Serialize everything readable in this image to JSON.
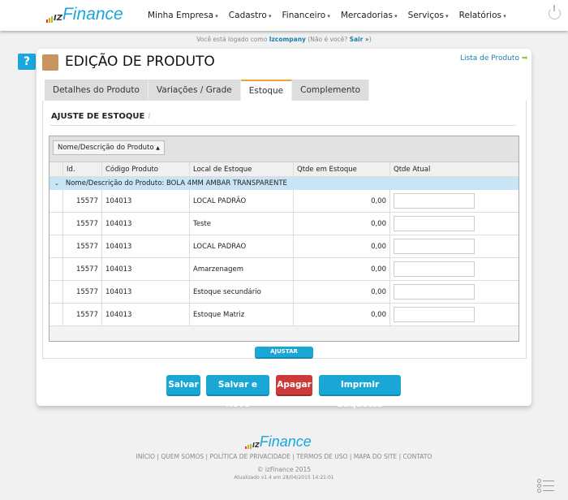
{
  "brand": {
    "logo_iz": "IZ",
    "logo_finance": "Finance",
    "accent": "#1ba7dc"
  },
  "nav": {
    "items": [
      "Minha Empresa",
      "Cadastro",
      "Financeiro",
      "Mercadorias",
      "Serviços",
      "Relatórios"
    ]
  },
  "login": {
    "prefix": "Você está logado como",
    "user": "Izcompany",
    "middle": "(Não é você?",
    "logout": "Sair »",
    "suffix": ")"
  },
  "page": {
    "title": "EDIÇÃO DE PRODUTO",
    "list_link": "Lista de Produto",
    "help": "?"
  },
  "tabs": [
    {
      "label": "Detalhes do Produto"
    },
    {
      "label": "Variações / Grade"
    },
    {
      "label": "Estoque",
      "active": true
    },
    {
      "label": "Complemento"
    }
  ],
  "section": {
    "title": "AJUSTE DE ESTOQUE",
    "info": "i"
  },
  "grid": {
    "group_button": "Nome/Descrição do Produto",
    "columns": [
      "Id.",
      "Código Produto",
      "Local de Estoque",
      "Qtde em Estoque",
      "Qtde Atual"
    ],
    "group_label": "Nome/Descrição do Produto: BOLA 4MM AMBAR TRANSPARENTE",
    "rows": [
      {
        "id": "15577",
        "code": "104013",
        "local": "LOCAL PADRÃO",
        "qty": "0,00",
        "current": ""
      },
      {
        "id": "15577",
        "code": "104013",
        "local": "Teste",
        "qty": "0,00",
        "current": ""
      },
      {
        "id": "15577",
        "code": "104013",
        "local": "LOCAL PADRAO",
        "qty": "0,00",
        "current": ""
      },
      {
        "id": "15577",
        "code": "104013",
        "local": "Amarzenagem",
        "qty": "0,00",
        "current": ""
      },
      {
        "id": "15577",
        "code": "104013",
        "local": "Estoque secundário",
        "qty": "0,00",
        "current": ""
      },
      {
        "id": "15577",
        "code": "104013",
        "local": "Estoque Matriz",
        "qty": "0,00",
        "current": ""
      }
    ]
  },
  "actions": {
    "adjust": "AJUSTAR ESTOQUE",
    "save": "Salvar",
    "save_new": "Salvar e Novo",
    "delete": "Apagar",
    "print": "Imprmir Etiquetas"
  },
  "footer": {
    "links": [
      "INÍCIO",
      "QUEM SOMOS",
      "POLÍTICA DE PRIVACIDADE",
      "TERMOS DE USO",
      "MAPA DO SITE",
      "CONTATO"
    ],
    "copyright": "© izFinance 2015",
    "updated": "Atualizado v1.4 em 28/04/2015 14:21:01"
  }
}
